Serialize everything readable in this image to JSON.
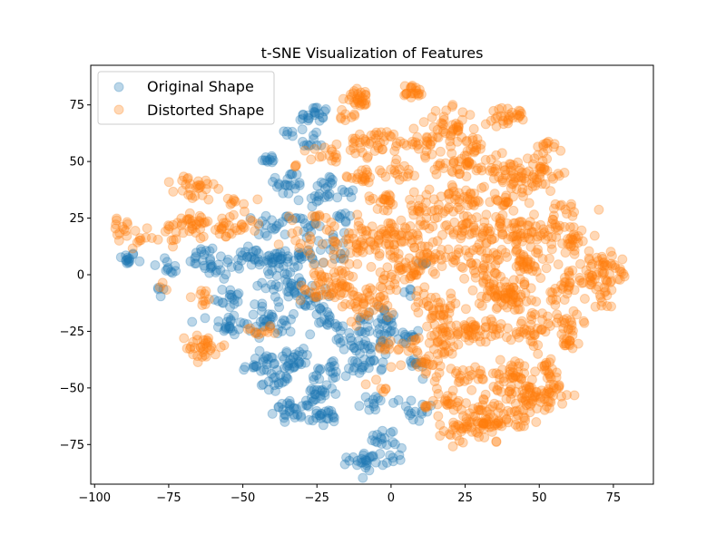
{
  "chart_data": {
    "type": "scatter",
    "title": "t-SNE Visualization of Features",
    "xlabel": "",
    "ylabel": "",
    "xlim": [
      -101.3,
      88.5
    ],
    "ylim": [
      -92.5,
      92.5
    ],
    "x_ticks": [
      -100,
      -75,
      -50,
      -25,
      0,
      25,
      50,
      75
    ],
    "y_ticks": [
      -75,
      -50,
      -25,
      0,
      25,
      50,
      75
    ],
    "x_tick_labels": [
      "−100",
      "−75",
      "−50",
      "−25",
      "0",
      "25",
      "50",
      "75"
    ],
    "y_tick_labels": [
      "−75",
      "−50",
      "−25",
      "0",
      "25",
      "50",
      "75"
    ],
    "grid": false,
    "legend_position": "top-left",
    "point_alpha": 0.3,
    "series": [
      {
        "name": "Original Shape",
        "color": "#1f77b4",
        "clusters": [
          {
            "cx": -89,
            "cy": 7,
            "sx": 1.5,
            "sy": 1.5,
            "n": 14
          },
          {
            "cx": -78,
            "cy": -7,
            "sx": 1.0,
            "sy": 1.5,
            "n": 4
          },
          {
            "cx": -75,
            "cy": 3,
            "sx": 2.5,
            "sy": 3,
            "n": 10
          },
          {
            "cx": -64,
            "cy": 8,
            "sx": 2.5,
            "sy": 2.5,
            "n": 14
          },
          {
            "cx": -57,
            "cy": 3,
            "sx": 3,
            "sy": 3,
            "n": 18
          },
          {
            "cx": -55,
            "cy": -10,
            "sx": 2.5,
            "sy": 2.5,
            "n": 16
          },
          {
            "cx": -55,
            "cy": -22,
            "sx": 3,
            "sy": 2.5,
            "n": 22
          },
          {
            "cx": -48,
            "cy": 8,
            "sx": 3,
            "sy": 3,
            "n": 20
          },
          {
            "cx": -40,
            "cy": 5,
            "sx": 3,
            "sy": 4,
            "n": 24
          },
          {
            "cx": -34,
            "cy": 63,
            "sx": 1,
            "sy": 1,
            "n": 5
          },
          {
            "cx": -41,
            "cy": 51,
            "sx": 1.5,
            "sy": 1,
            "n": 10
          },
          {
            "cx": -35,
            "cy": 40,
            "sx": 3,
            "sy": 3,
            "n": 20
          },
          {
            "cx": -40,
            "cy": 22,
            "sx": 3,
            "sy": 3,
            "n": 18
          },
          {
            "cx": -26,
            "cy": 70,
            "sx": 2.5,
            "sy": 2.5,
            "n": 22
          },
          {
            "cx": -27,
            "cy": 58,
            "sx": 2,
            "sy": 2,
            "n": 10
          },
          {
            "cx": -25,
            "cy": 35,
            "sx": 2.5,
            "sy": 2.5,
            "n": 14
          },
          {
            "cx": -30,
            "cy": 22,
            "sx": 2.5,
            "sy": 3,
            "n": 16
          },
          {
            "cx": -30,
            "cy": 8,
            "sx": 4,
            "sy": 3,
            "n": 26
          },
          {
            "cx": -35,
            "cy": -5,
            "sx": 4,
            "sy": 3,
            "n": 30
          },
          {
            "cx": -40,
            "cy": -20,
            "sx": 4,
            "sy": 4,
            "n": 34
          },
          {
            "cx": -28,
            "cy": -12,
            "sx": 3,
            "sy": 3,
            "n": 22
          },
          {
            "cx": -44,
            "cy": -40,
            "sx": 3,
            "sy": 2.5,
            "n": 24
          },
          {
            "cx": -33,
            "cy": -38,
            "sx": 3,
            "sy": 3,
            "n": 30
          },
          {
            "cx": -38,
            "cy": -48,
            "sx": 2.5,
            "sy": 2,
            "n": 14
          },
          {
            "cx": -33,
            "cy": -60,
            "sx": 3,
            "sy": 2,
            "n": 30
          },
          {
            "cx": -24,
            "cy": -52,
            "sx": 3,
            "sy": 3,
            "n": 20
          },
          {
            "cx": -22,
            "cy": -63,
            "sx": 3,
            "sy": 2,
            "n": 20
          },
          {
            "cx": -20,
            "cy": -42,
            "sx": 3,
            "sy": 3,
            "n": 16
          },
          {
            "cx": -13,
            "cy": -28,
            "sx": 3,
            "sy": 3,
            "n": 22
          },
          {
            "cx": -9,
            "cy": -40,
            "sx": 3,
            "sy": 2.5,
            "n": 22
          },
          {
            "cx": -5,
            "cy": -20,
            "sx": 3.5,
            "sy": 3,
            "n": 26
          },
          {
            "cx": -5,
            "cy": -55,
            "sx": 2.5,
            "sy": 3,
            "n": 12
          },
          {
            "cx": -3,
            "cy": -72,
            "sx": 2.5,
            "sy": 2,
            "n": 12
          },
          {
            "cx": -8,
            "cy": -82,
            "sx": 3,
            "sy": 2,
            "n": 28
          },
          {
            "cx": 1,
            "cy": -78,
            "sx": 2,
            "sy": 2,
            "n": 8
          },
          {
            "cx": -3,
            "cy": -30,
            "sx": 3,
            "sy": 3,
            "n": 20
          },
          {
            "cx": 5,
            "cy": -28,
            "sx": 2,
            "sy": 2,
            "n": 10
          },
          {
            "cx": 8,
            "cy": -40,
            "sx": 2,
            "sy": 2,
            "n": 10
          },
          {
            "cx": 8,
            "cy": -60,
            "sx": 3,
            "sy": 3,
            "n": 14
          },
          {
            "cx": -16,
            "cy": 25,
            "sx": 2,
            "sy": 2,
            "n": 8
          },
          {
            "cx": -21,
            "cy": 40,
            "sx": 2,
            "sy": 2,
            "n": 8
          },
          {
            "cx": -18,
            "cy": 12,
            "sx": 3,
            "sy": 3,
            "n": 12
          },
          {
            "cx": -22,
            "cy": -20,
            "sx": 3,
            "sy": 3,
            "n": 14
          },
          {
            "cx": -15,
            "cy": 37,
            "sx": 1.5,
            "sy": 1.5,
            "n": 6
          },
          {
            "cx": 10,
            "cy": 5,
            "sx": 1.5,
            "sy": 1.5,
            "n": 5
          },
          {
            "cx": 8,
            "cy": -7,
            "sx": 1.5,
            "sy": 1.5,
            "n": 4
          }
        ]
      },
      {
        "name": "Distorted Shape",
        "color": "#ff7f0e",
        "clusters": [
          {
            "cx": -90,
            "cy": 20,
            "sx": 2.5,
            "sy": 2,
            "n": 14
          },
          {
            "cx": -84,
            "cy": 16,
            "sx": 2,
            "sy": 2,
            "n": 8
          },
          {
            "cx": -78,
            "cy": -6,
            "sx": 1,
            "sy": 1,
            "n": 3
          },
          {
            "cx": -75,
            "cy": 15,
            "sx": 2.5,
            "sy": 5,
            "n": 12
          },
          {
            "cx": -66,
            "cy": 38,
            "sx": 3.5,
            "sy": 3,
            "n": 28
          },
          {
            "cx": -68,
            "cy": 24,
            "sx": 4,
            "sy": 3,
            "n": 26
          },
          {
            "cx": -57,
            "cy": 20,
            "sx": 3,
            "sy": 3,
            "n": 18
          },
          {
            "cx": -52,
            "cy": 32,
            "sx": 2,
            "sy": 2,
            "n": 8
          },
          {
            "cx": -50,
            "cy": 23,
            "sx": 3,
            "sy": 3,
            "n": 14
          },
          {
            "cx": -63,
            "cy": -32,
            "sx": 3,
            "sy": 3,
            "n": 32
          },
          {
            "cx": -64,
            "cy": -10,
            "sx": 2,
            "sy": 2,
            "n": 10
          },
          {
            "cx": -45,
            "cy": -25,
            "sx": 2,
            "sy": 1.5,
            "n": 6
          },
          {
            "cx": -25,
            "cy": -5,
            "sx": 3,
            "sy": 4,
            "n": 20
          },
          {
            "cx": -30,
            "cy": 14,
            "sx": 3,
            "sy": 3,
            "n": 12
          },
          {
            "cx": -25,
            "cy": 25,
            "sx": 3,
            "sy": 3,
            "n": 10
          },
          {
            "cx": -22,
            "cy": 52,
            "sx": 3,
            "sy": 2.5,
            "n": 14
          },
          {
            "cx": -15,
            "cy": 70,
            "sx": 2,
            "sy": 2,
            "n": 8
          },
          {
            "cx": -18,
            "cy": -5,
            "sx": 4,
            "sy": 5,
            "n": 40
          },
          {
            "cx": -10,
            "cy": 78,
            "sx": 2.5,
            "sy": 2,
            "n": 28
          },
          {
            "cx": 7,
            "cy": 81,
            "sx": 2,
            "sy": 1.5,
            "n": 20
          },
          {
            "cx": -5,
            "cy": 58,
            "sx": 5,
            "sy": 3,
            "n": 40
          },
          {
            "cx": -10,
            "cy": 44,
            "sx": 3,
            "sy": 2,
            "n": 18
          },
          {
            "cx": 3,
            "cy": 46,
            "sx": 3,
            "sy": 2,
            "n": 16
          },
          {
            "cx": 10,
            "cy": 58,
            "sx": 4,
            "sy": 3,
            "n": 26
          },
          {
            "cx": -2,
            "cy": 33,
            "sx": 3,
            "sy": 2,
            "n": 20
          },
          {
            "cx": -10,
            "cy": 15,
            "sx": 5,
            "sy": 5,
            "n": 60
          },
          {
            "cx": 3,
            "cy": 18,
            "sx": 4,
            "sy": 4,
            "n": 40
          },
          {
            "cx": 12,
            "cy": 28,
            "sx": 4,
            "sy": 4,
            "n": 32
          },
          {
            "cx": 20,
            "cy": 65,
            "sx": 4,
            "sy": 4,
            "n": 40
          },
          {
            "cx": 28,
            "cy": 58,
            "sx": 2,
            "sy": 2,
            "n": 12
          },
          {
            "cx": 23,
            "cy": 48,
            "sx": 5,
            "sy": 4,
            "n": 40
          },
          {
            "cx": 25,
            "cy": 35,
            "sx": 4,
            "sy": 3,
            "n": 30
          },
          {
            "cx": 25,
            "cy": 20,
            "sx": 5,
            "sy": 4,
            "n": 40
          },
          {
            "cx": 15,
            "cy": 10,
            "sx": 4,
            "sy": 4,
            "n": 30
          },
          {
            "cx": 5,
            "cy": 0,
            "sx": 5,
            "sy": 5,
            "n": 45
          },
          {
            "cx": -7,
            "cy": -12,
            "sx": 4,
            "sy": 4,
            "n": 40
          },
          {
            "cx": 0,
            "cy": -32,
            "sx": 2,
            "sy": 2,
            "n": 10
          },
          {
            "cx": 15,
            "cy": -15,
            "sx": 4,
            "sy": 4,
            "n": 40
          },
          {
            "cx": 20,
            "cy": -25,
            "sx": 4,
            "sy": 3,
            "n": 30
          },
          {
            "cx": 12,
            "cy": -40,
            "sx": 4,
            "sy": 3,
            "n": 26
          },
          {
            "cx": 20,
            "cy": -55,
            "sx": 3,
            "sy": 3,
            "n": 20
          },
          {
            "cx": 18,
            "cy": -33,
            "sx": 2,
            "sy": 2,
            "n": 10
          },
          {
            "cx": 30,
            "cy": 5,
            "sx": 4,
            "sy": 4,
            "n": 40
          },
          {
            "cx": 35,
            "cy": -8,
            "sx": 4,
            "sy": 3,
            "n": 35
          },
          {
            "cx": 30,
            "cy": -25,
            "sx": 4,
            "sy": 4,
            "n": 34
          },
          {
            "cx": 28,
            "cy": -45,
            "sx": 3,
            "sy": 3,
            "n": 20
          },
          {
            "cx": 28,
            "cy": -68,
            "sx": 6,
            "sy": 3,
            "n": 50
          },
          {
            "cx": 35,
            "cy": -62,
            "sx": 6,
            "sy": 4,
            "n": 60
          },
          {
            "cx": 42,
            "cy": -45,
            "sx": 4,
            "sy": 4,
            "n": 50
          },
          {
            "cx": 48,
            "cy": -55,
            "sx": 5,
            "sy": 3,
            "n": 40
          },
          {
            "cx": 52,
            "cy": -42,
            "sx": 3,
            "sy": 3,
            "n": 16
          },
          {
            "cx": 55,
            "cy": -52,
            "sx": 3,
            "sy": 3,
            "n": 16
          },
          {
            "cx": 40,
            "cy": 70,
            "sx": 3,
            "sy": 2,
            "n": 28
          },
          {
            "cx": 40,
            "cy": 45,
            "sx": 4,
            "sy": 4,
            "n": 40
          },
          {
            "cx": 50,
            "cy": 45,
            "sx": 4,
            "sy": 4,
            "n": 40
          },
          {
            "cx": 52,
            "cy": 56,
            "sx": 2,
            "sy": 1.5,
            "n": 12
          },
          {
            "cx": 38,
            "cy": 32,
            "sx": 3,
            "sy": 2,
            "n": 16
          },
          {
            "cx": 40,
            "cy": 20,
            "sx": 5,
            "sy": 4,
            "n": 50
          },
          {
            "cx": 52,
            "cy": 20,
            "sx": 5,
            "sy": 4,
            "n": 40
          },
          {
            "cx": 45,
            "cy": 5,
            "sx": 5,
            "sy": 4,
            "n": 40
          },
          {
            "cx": 42,
            "cy": -10,
            "sx": 5,
            "sy": 4,
            "n": 40
          },
          {
            "cx": 48,
            "cy": -25,
            "sx": 4,
            "sy": 4,
            "n": 40
          },
          {
            "cx": 58,
            "cy": -5,
            "sx": 3,
            "sy": 4,
            "n": 30
          },
          {
            "cx": 60,
            "cy": -22,
            "sx": 3,
            "sy": 3,
            "n": 20
          },
          {
            "cx": 60,
            "cy": -30,
            "sx": 2,
            "sy": 1.5,
            "n": 12
          },
          {
            "cx": 62,
            "cy": 15,
            "sx": 3,
            "sy": 3,
            "n": 20
          },
          {
            "cx": 60,
            "cy": 30,
            "sx": 2,
            "sy": 2,
            "n": 8
          },
          {
            "cx": 70,
            "cy": 2,
            "sx": 4,
            "sy": 4,
            "n": 50
          },
          {
            "cx": 72,
            "cy": -8,
            "sx": 3,
            "sy": 3,
            "n": 16
          },
          {
            "cx": 78,
            "cy": 1,
            "sx": 1,
            "sy": 1,
            "n": 3
          },
          {
            "cx": -3,
            "cy": -50,
            "sx": 2,
            "sy": 2,
            "n": 6
          },
          {
            "cx": 8,
            "cy": -30,
            "sx": 2,
            "sy": 2,
            "n": 8
          },
          {
            "cx": 12,
            "cy": -58,
            "sx": 1.5,
            "sy": 1.5,
            "n": 5
          },
          {
            "cx": -33,
            "cy": 48,
            "sx": 1,
            "sy": 1,
            "n": 3
          },
          {
            "cx": -41,
            "cy": -24,
            "sx": 1.5,
            "sy": 1.5,
            "n": 5
          }
        ]
      }
    ]
  }
}
